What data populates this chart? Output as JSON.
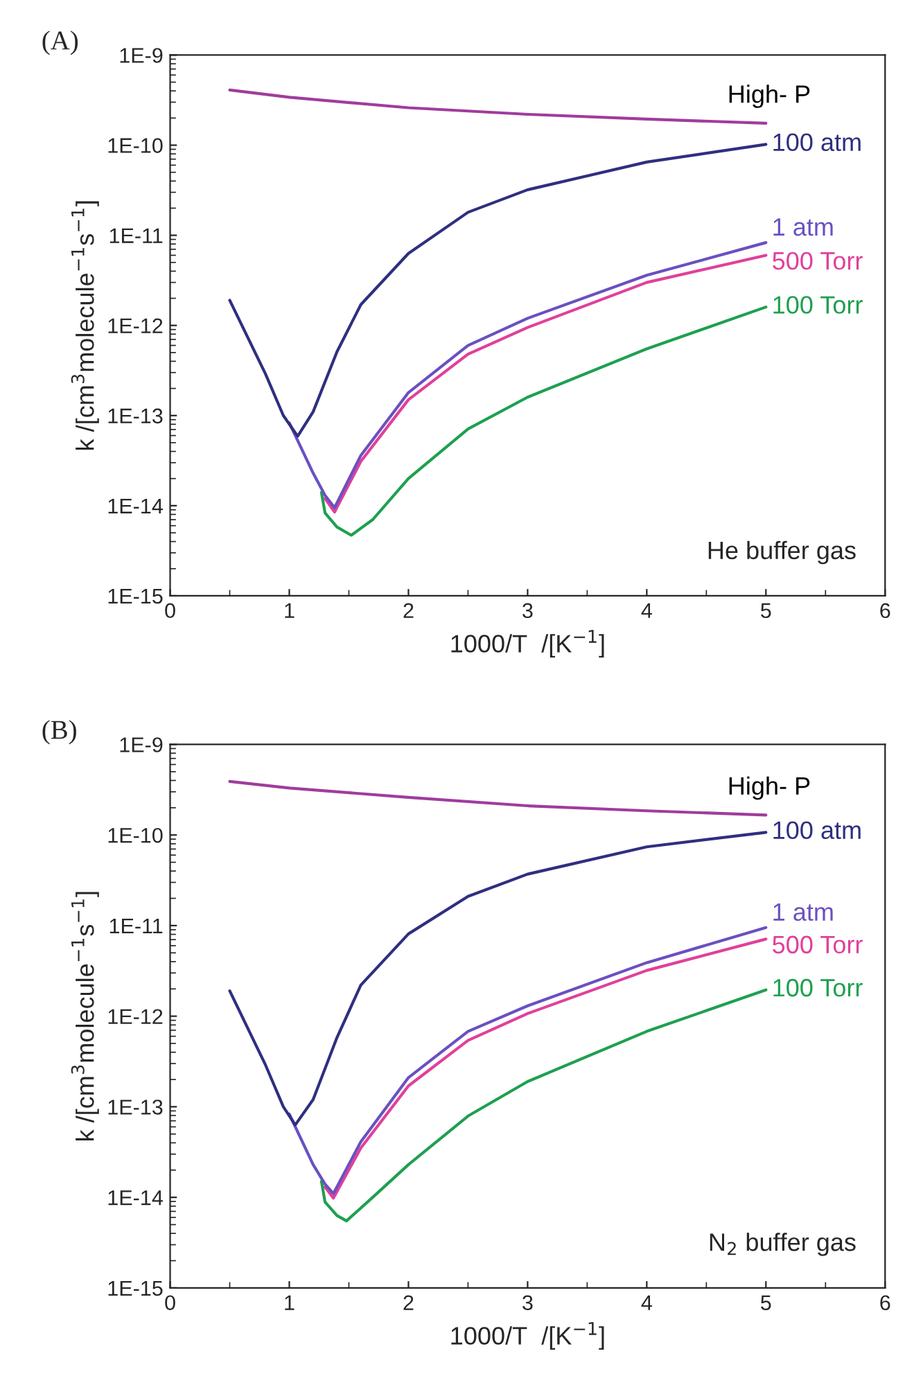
{
  "chart_data": [
    {
      "type": "line",
      "title": "(A)",
      "xlabel": "1000/T  /[K$^{−1}$]",
      "ylabel": "k /[cm$^{3}$molecule$^{−1}$s$^{−1}$]",
      "log": "y",
      "grid": false,
      "legend": false,
      "xlim": [
        0,
        6
      ],
      "xticks": [
        0,
        1,
        2,
        3,
        4,
        5,
        6
      ],
      "ylim": [
        1e-15,
        1e-09
      ],
      "yticks": [
        {
          "value": 1e-15,
          "label": "1E-15"
        },
        {
          "value": 1e-14,
          "label": "1E-14"
        },
        {
          "value": 1e-13,
          "label": "1E-13"
        },
        {
          "value": 1e-12,
          "label": "1E-12"
        },
        {
          "value": 1e-11,
          "label": "1E-11"
        },
        {
          "value": 1e-10,
          "label": "1E-10"
        },
        {
          "value": 1e-09,
          "label": "1E-9"
        }
      ],
      "annotations": [
        "He buffer gas"
      ],
      "series": [
        {
          "name": "High- P",
          "color": "#a03c9c",
          "x": [
            0.5,
            1,
            2,
            3,
            4,
            5
          ],
          "values": [
            4.1e-10,
            3.4e-10,
            2.6e-10,
            2.2e-10,
            1.95e-10,
            1.75e-10
          ]
        },
        {
          "name": "100 atm",
          "color": "#2f2f80",
          "x": [
            0.5,
            0.8,
            0.95,
            1.07,
            1.2,
            1.4,
            1.6,
            2,
            2.5,
            3,
            4,
            5
          ],
          "values": [
            1.9e-12,
            2.9e-13,
            1e-13,
            5.9e-14,
            1.1e-13,
            5.1e-13,
            1.7e-12,
            6.3e-12,
            1.8e-11,
            3.2e-11,
            6.5e-11,
            1.02e-10
          ]
        },
        {
          "name": "1 atm",
          "color": "#6a50c0",
          "x": [
            1.0,
            1.2,
            1.3,
            1.38,
            1.6,
            2,
            2.5,
            3,
            4,
            5
          ],
          "values": [
            8.3e-14,
            2.3e-14,
            1.3e-14,
            9.5e-15,
            3.6e-14,
            1.8e-13,
            6e-13,
            1.2e-12,
            3.6e-12,
            8.3e-12
          ]
        },
        {
          "name": "500 Torr",
          "color": "#e0409a",
          "x": [
            1.3,
            1.38,
            1.6,
            2,
            2.5,
            3,
            4,
            5
          ],
          "values": [
            1.2e-14,
            8.5e-15,
            3.1e-14,
            1.5e-13,
            4.8e-13,
            9.5e-13,
            3e-12,
            6e-12
          ]
        },
        {
          "name": "100 Torr",
          "color": "#1ea050",
          "x": [
            1.27,
            1.3,
            1.4,
            1.52,
            1.7,
            2,
            2.5,
            3,
            4,
            5
          ],
          "values": [
            1.4e-14,
            8.3e-15,
            5.8e-15,
            4.7e-15,
            7e-15,
            2e-14,
            7.1e-14,
            1.6e-13,
            5.5e-13,
            1.6e-12
          ]
        }
      ]
    },
    {
      "type": "line",
      "title": "(B)",
      "xlabel": "1000/T  /[K$^{−1}$]",
      "ylabel": "k /[cm$^{3}$molecule$^{−1}$s$^{−1}$]",
      "log": "y",
      "grid": false,
      "legend": false,
      "xlim": [
        0,
        6
      ],
      "xticks": [
        0,
        1,
        2,
        3,
        4,
        5,
        6
      ],
      "ylim": [
        1e-15,
        1e-09
      ],
      "yticks": [
        {
          "value": 1e-15,
          "label": "1E-15"
        },
        {
          "value": 1e-14,
          "label": "1E-14"
        },
        {
          "value": 1e-13,
          "label": "1E-13"
        },
        {
          "value": 1e-12,
          "label": "1E-12"
        },
        {
          "value": 1e-11,
          "label": "1E-11"
        },
        {
          "value": 1e-10,
          "label": "1E-10"
        },
        {
          "value": 1e-09,
          "label": "1E-9"
        }
      ],
      "annotations": [
        "N$_{2}$ buffer gas"
      ],
      "series": [
        {
          "name": "High- P",
          "color": "#a03c9c",
          "x": [
            0.5,
            1,
            2,
            3,
            4,
            5
          ],
          "values": [
            3.9e-10,
            3.3e-10,
            2.6e-10,
            2.1e-10,
            1.85e-10,
            1.66e-10
          ]
        },
        {
          "name": "100 atm",
          "color": "#2f2f80",
          "x": [
            0.5,
            0.8,
            0.95,
            1.05,
            1.2,
            1.4,
            1.6,
            2,
            2.5,
            3,
            4,
            5
          ],
          "values": [
            1.9e-12,
            2.9e-13,
            1e-13,
            6.3e-14,
            1.2e-13,
            5.8e-13,
            2.2e-12,
            8.1e-12,
            2.1e-11,
            3.7e-11,
            7.4e-11,
            1.07e-10
          ]
        },
        {
          "name": "1 atm",
          "color": "#6a50c0",
          "x": [
            1.0,
            1.2,
            1.3,
            1.37,
            1.6,
            2,
            2.5,
            3,
            4,
            5
          ],
          "values": [
            8.3e-14,
            2.3e-14,
            1.4e-14,
            1.1e-14,
            4.1e-14,
            2.1e-13,
            6.8e-13,
            1.3e-12,
            3.9e-12,
            9.5e-12
          ]
        },
        {
          "name": "500 Torr",
          "color": "#e0409a",
          "x": [
            1.3,
            1.37,
            1.6,
            2,
            2.5,
            3,
            4,
            5
          ],
          "values": [
            1.3e-14,
            9.8e-15,
            3.5e-14,
            1.7e-13,
            5.4e-13,
            1.07e-12,
            3.2e-12,
            7.1e-12
          ]
        },
        {
          "name": "100 Torr",
          "color": "#1ea050",
          "x": [
            1.27,
            1.3,
            1.4,
            1.48,
            1.7,
            2,
            2.5,
            3,
            4,
            5
          ],
          "values": [
            1.5e-14,
            8.9e-15,
            6.3e-15,
            5.5e-15,
            1e-14,
            2.3e-14,
            7.9e-14,
            1.9e-13,
            6.8e-13,
            1.95e-12
          ]
        }
      ]
    }
  ]
}
